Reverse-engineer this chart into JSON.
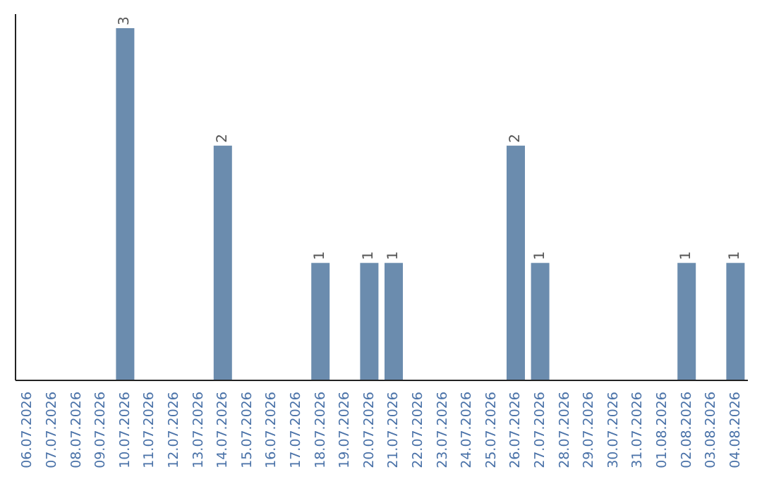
{
  "chart_data": {
    "type": "bar",
    "categories": [
      "06.07.2026",
      "07.07.2026",
      "08.07.2026",
      "09.07.2026",
      "10.07.2026",
      "11.07.2026",
      "12.07.2026",
      "13.07.2026",
      "14.07.2026",
      "15.07.2026",
      "16.07.2026",
      "17.07.2026",
      "18.07.2026",
      "19.07.2026",
      "20.07.2026",
      "21.07.2026",
      "22.07.2026",
      "23.07.2026",
      "24.07.2026",
      "25.07.2026",
      "26.07.2026",
      "27.07.2026",
      "28.07.2026",
      "29.07.2026",
      "30.07.2026",
      "31.07.2026",
      "01.08.2026",
      "02.08.2026",
      "03.08.2026",
      "04.08.2026"
    ],
    "values": [
      null,
      null,
      null,
      null,
      3,
      null,
      null,
      null,
      2,
      null,
      null,
      null,
      1,
      null,
      1,
      1,
      null,
      null,
      null,
      null,
      2,
      1,
      null,
      null,
      null,
      null,
      null,
      1,
      null,
      1
    ],
    "color": "#6b8cae",
    "data_labels": true,
    "tick_labels": "x"
  }
}
